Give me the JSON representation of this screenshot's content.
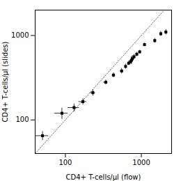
{
  "chart_data": {
    "type": "scatter",
    "x": [
      50,
      90,
      130,
      170,
      230,
      340,
      430,
      550,
      620,
      680,
      720,
      740,
      760,
      800,
      870,
      950,
      1100,
      1500,
      1800,
      2100
    ],
    "y": [
      65,
      120,
      140,
      165,
      210,
      280,
      340,
      380,
      430,
      470,
      490,
      510,
      530,
      560,
      600,
      640,
      780,
      870,
      1050,
      1100
    ],
    "xerr": [
      10,
      18,
      22,
      20,
      18,
      22,
      20,
      25,
      0,
      0,
      0,
      0,
      0,
      0,
      0,
      0,
      0,
      0,
      0,
      0
    ],
    "yerr": [
      8,
      18,
      15,
      14,
      18,
      18,
      22,
      28,
      30,
      28,
      28,
      55,
      45,
      38,
      35,
      30,
      35,
      55,
      70,
      80
    ],
    "xlabel": "CD4+ T-cells/μl (flow)",
    "ylabel": "CD4+ T-cells/μl (slides)",
    "xlim": [
      40,
      2500
    ],
    "ylim": [
      40,
      2000
    ],
    "xticks": [
      100,
      1000
    ],
    "yticks": [
      100,
      1000
    ],
    "log": true,
    "color": "#000000",
    "marker": "square",
    "identity_line": {
      "color": "#666666",
      "line_style": "dotted"
    }
  }
}
